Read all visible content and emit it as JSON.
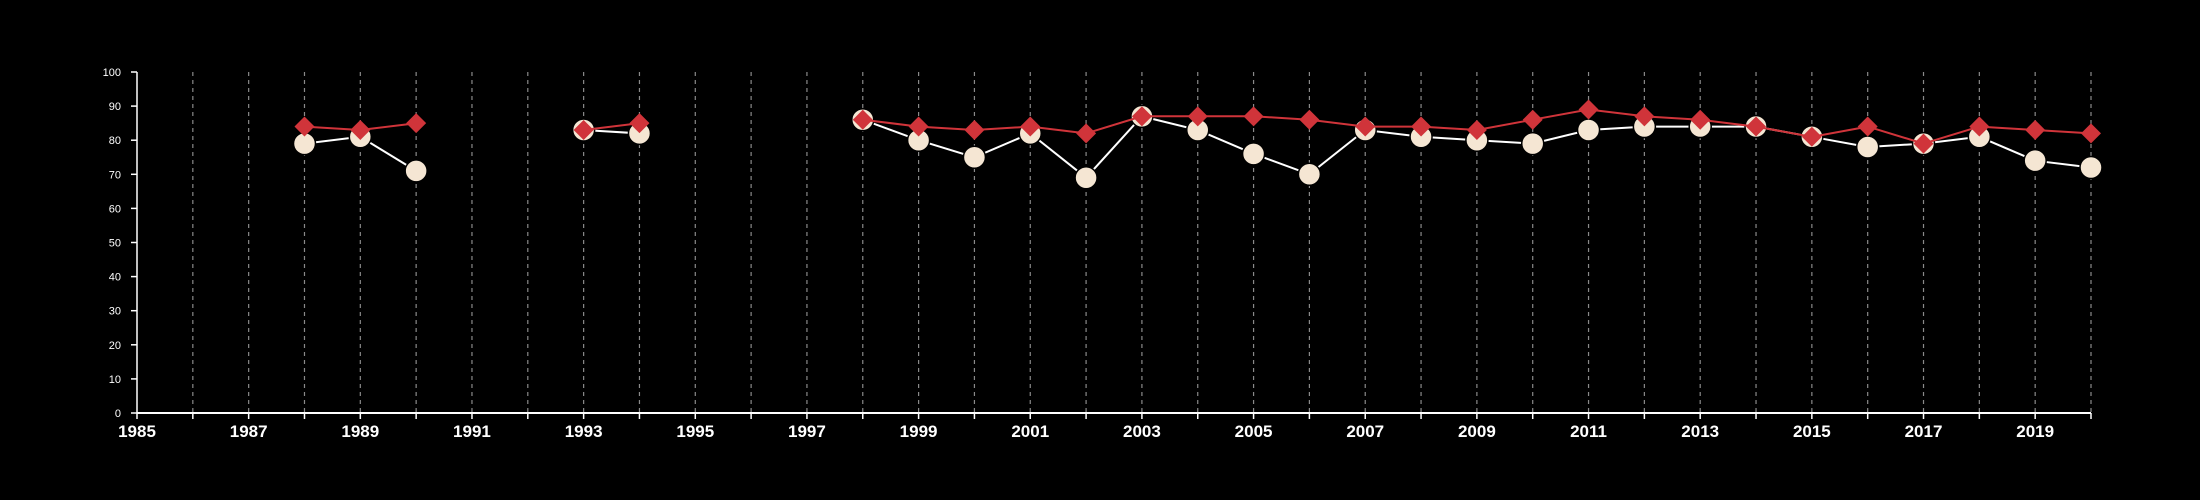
{
  "chart_data": {
    "type": "line",
    "title": "",
    "xlabel": "",
    "ylabel": "",
    "xlim": [
      1985,
      2020
    ],
    "ylim": [
      0,
      100
    ],
    "x_ticks": [
      1985,
      1987,
      1989,
      1991,
      1993,
      1995,
      1997,
      1999,
      2001,
      2003,
      2005,
      2007,
      2009,
      2011,
      2013,
      2015,
      2017,
      2019
    ],
    "x_tick_labels": [
      "1985",
      "1987",
      "1989",
      "1991",
      "1993",
      "1995",
      "1997",
      "1999",
      "2001",
      "2003",
      "2005",
      "2007",
      "2009",
      "2011",
      "2013",
      "2015",
      "2017",
      "2019"
    ],
    "y_ticks": [
      0,
      10,
      20,
      30,
      40,
      50,
      60,
      70,
      80,
      90,
      100
    ],
    "y_tick_labels": [
      "0",
      "10",
      "20",
      "30",
      "40",
      "50",
      "60",
      "70",
      "80",
      "90",
      "100"
    ],
    "vertical_grid": "dashed at every year",
    "background": "#000000",
    "series": [
      {
        "marker": "diamond",
        "color": "#d0343a",
        "points": [
          [
            1988,
            84
          ],
          [
            1989,
            83
          ],
          [
            1990,
            85
          ],
          [
            1993,
            83
          ],
          [
            1994,
            85
          ],
          [
            1998,
            86
          ],
          [
            1999,
            84
          ],
          [
            2000,
            83
          ],
          [
            2001,
            84
          ],
          [
            2002,
            82
          ],
          [
            2003,
            87
          ],
          [
            2004,
            87
          ],
          [
            2005,
            87
          ],
          [
            2006,
            86
          ],
          [
            2007,
            84
          ],
          [
            2008,
            84
          ],
          [
            2009,
            83
          ],
          [
            2010,
            86
          ],
          [
            2011,
            89
          ],
          [
            2012,
            87
          ],
          [
            2013,
            86
          ],
          [
            2014,
            84
          ],
          [
            2015,
            81
          ],
          [
            2016,
            84
          ],
          [
            2017,
            79
          ],
          [
            2018,
            84
          ],
          [
            2019,
            83
          ],
          [
            2020,
            82
          ]
        ]
      },
      {
        "marker": "circle",
        "color": "#f5e6d3",
        "points": [
          [
            1988,
            79
          ],
          [
            1989,
            81
          ],
          [
            1990,
            71
          ],
          [
            1993,
            83
          ],
          [
            1994,
            82
          ],
          [
            1998,
            86
          ],
          [
            1999,
            80
          ],
          [
            2000,
            75
          ],
          [
            2001,
            82
          ],
          [
            2002,
            69
          ],
          [
            2003,
            87
          ],
          [
            2004,
            83
          ],
          [
            2005,
            76
          ],
          [
            2006,
            70
          ],
          [
            2007,
            83
          ],
          [
            2008,
            81
          ],
          [
            2009,
            80
          ],
          [
            2010,
            79
          ],
          [
            2011,
            83
          ],
          [
            2012,
            84
          ],
          [
            2013,
            84
          ],
          [
            2014,
            84
          ],
          [
            2015,
            81
          ],
          [
            2016,
            78
          ],
          [
            2017,
            79
          ],
          [
            2018,
            81
          ],
          [
            2019,
            74
          ],
          [
            2020,
            72
          ]
        ]
      }
    ]
  }
}
